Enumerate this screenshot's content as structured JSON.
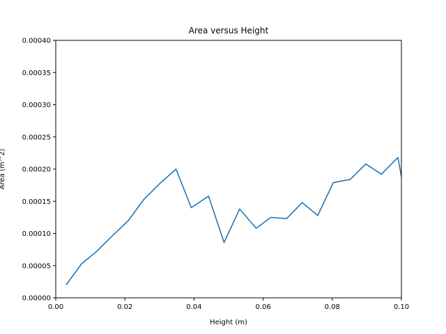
{
  "chart_data": {
    "type": "line",
    "title": "Area versus Height",
    "xlabel": "Height (m)",
    "ylabel": "Area (m^2)",
    "xlim": [
      0.0,
      0.1
    ],
    "ylim": [
      0.0,
      0.0004
    ],
    "x_ticks": [
      "0.00",
      "0.02",
      "0.04",
      "0.06",
      "0.08",
      "0.10"
    ],
    "y_ticks": [
      "0.00000",
      "0.00005",
      "0.00010",
      "0.00015",
      "0.00020",
      "0.00025",
      "0.00030",
      "0.00035",
      "0.00040"
    ],
    "grid": false,
    "series": [
      {
        "color": "#1f77b4",
        "x": [
          0.003,
          0.0075,
          0.012,
          0.0165,
          0.021,
          0.0255,
          0.0302,
          0.0348,
          0.0392,
          0.0442,
          0.0487,
          0.0532,
          0.058,
          0.0622,
          0.0668,
          0.0713,
          0.0758,
          0.0803,
          0.0852,
          0.0897,
          0.0942,
          0.099,
          0.1
        ],
        "y": [
          2e-05,
          5.3e-05,
          7.3e-05,
          9.7e-05,
          0.00012,
          0.000153,
          0.000178,
          0.0002,
          0.00014,
          0.000158,
          8.6e-05,
          0.000138,
          0.000108,
          0.000125,
          0.000123,
          0.000148,
          0.000128,
          0.000179,
          0.000184,
          0.000208,
          0.000192,
          0.000218,
          0.000188
        ]
      }
    ]
  }
}
